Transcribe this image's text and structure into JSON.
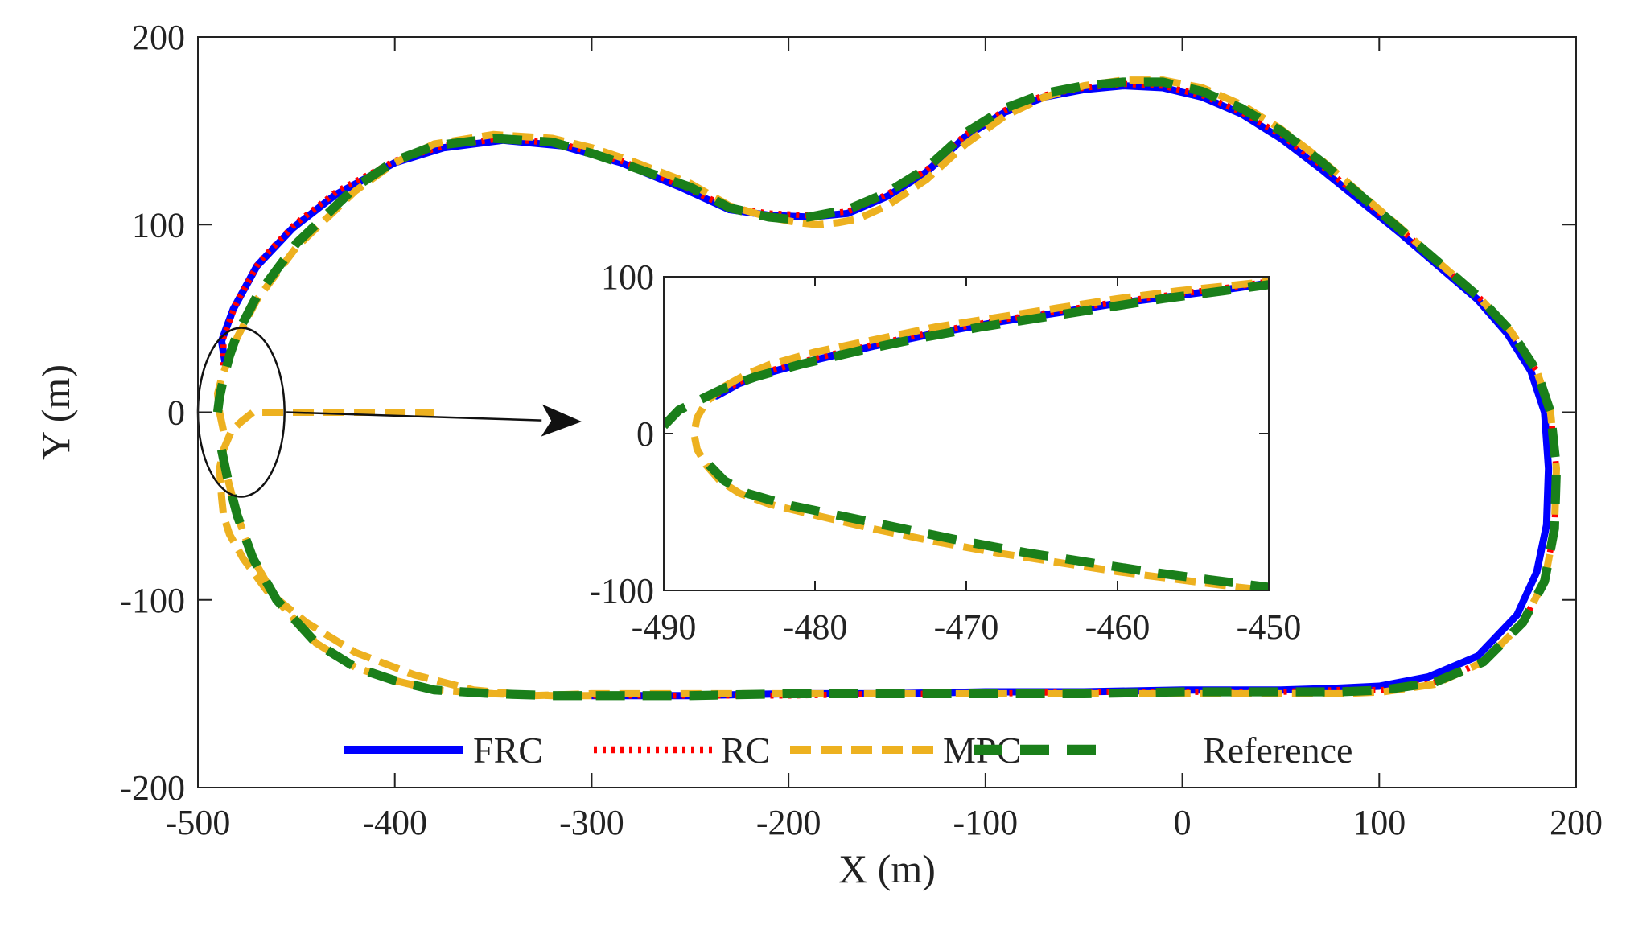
{
  "chart_data": [
    {
      "id": "main",
      "type": "line",
      "title": "",
      "xlabel": "X (m)",
      "ylabel": "Y (m)",
      "xlim": [
        -500,
        200
      ],
      "ylim": [
        -200,
        200
      ],
      "xticks": [
        -500,
        -400,
        -300,
        -200,
        -100,
        0,
        100,
        200
      ],
      "yticks": [
        -200,
        -100,
        0,
        100,
        200
      ],
      "grid": false,
      "legend_position": "bottom",
      "colors": {
        "FRC": "#0000ff",
        "RC": "#ff0000",
        "MPC": "#edb120",
        "Reference": "#1a7f1a"
      },
      "series": [
        {
          "name": "FRC",
          "style": "solid",
          "x": [
            -486,
            -488,
            -482,
            -470,
            -452,
            -430,
            -400,
            -375,
            -345,
            -315,
            -285,
            -255,
            -230,
            -210,
            -190,
            -170,
            -150,
            -130,
            -110,
            -90,
            -70,
            -50,
            -30,
            -10,
            10,
            30,
            50,
            70,
            90,
            110,
            130,
            150,
            165,
            177,
            184,
            186,
            185,
            180,
            170,
            150,
            125,
            100,
            80,
            50,
            0,
            -50,
            -100,
            -150,
            -200,
            -250,
            -300
          ],
          "y": [
            25,
            38,
            55,
            78,
            98,
            116,
            133,
            141,
            145,
            142,
            133,
            120,
            108,
            105,
            104,
            106,
            115,
            128,
            147,
            160,
            168,
            172,
            174,
            173,
            168,
            159,
            146,
            130,
            113,
            96,
            78,
            60,
            42,
            22,
            0,
            -30,
            -60,
            -85,
            -108,
            -130,
            -141,
            -146,
            -147,
            -148,
            -148,
            -149,
            -149,
            -150,
            -150,
            -151,
            -151
          ]
        },
        {
          "name": "RC",
          "style": "dotted",
          "x": [
            -487,
            -487,
            -481,
            -469,
            -451,
            -429,
            -400,
            -375,
            -345,
            -315,
            -285,
            -255,
            -230,
            -210,
            -190,
            -170,
            -150,
            -130,
            -110,
            -90,
            -70,
            -50,
            -30,
            -10,
            10,
            30,
            50,
            70,
            90,
            110,
            130,
            150,
            167,
            180,
            187,
            190,
            189,
            184,
            173,
            153,
            128,
            102,
            80,
            50,
            0,
            -50,
            -100,
            -150,
            -200,
            -250,
            -300
          ],
          "y": [
            25,
            40,
            57,
            80,
            100,
            118,
            134,
            142,
            146,
            143,
            134,
            121,
            109,
            106,
            105,
            107,
            116,
            129,
            148,
            161,
            169,
            173,
            175,
            174,
            169,
            160,
            148,
            132,
            115,
            98,
            80,
            62,
            43,
            22,
            0,
            -30,
            -62,
            -90,
            -112,
            -133,
            -144,
            -148,
            -148,
            -149,
            -149,
            -149,
            -150,
            -150,
            -151,
            -151,
            -151
          ]
        },
        {
          "name": "MPC",
          "style": "dashed",
          "x": [
            -487,
            -489,
            -490,
            -488,
            -485,
            -480,
            -470,
            -450,
            -420,
            -400,
            -380,
            -350,
            -320,
            -300,
            -280,
            -250,
            -230,
            -210,
            -195,
            -185,
            -175,
            -165,
            -150,
            -130,
            -110,
            -90,
            -70,
            -50,
            -30,
            -10,
            10,
            30,
            50,
            70,
            90,
            110,
            130,
            150,
            167,
            180,
            187,
            190,
            189,
            184,
            173,
            153,
            128,
            102,
            80,
            50,
            0,
            -50,
            -100,
            -150,
            -200,
            -250,
            -300,
            -330,
            -360,
            -390,
            -420,
            -445,
            -465,
            -477,
            -484,
            -487,
            -488,
            -489,
            -487,
            -483,
            -478,
            -472,
            -460,
            -440,
            -420,
            -380
          ],
          "y": [
            -10,
            0,
            10,
            18,
            27,
            40,
            60,
            88,
            118,
            133,
            143,
            148,
            146,
            141,
            134,
            122,
            110,
            104,
            101,
            100,
            101,
            103,
            110,
            124,
            143,
            158,
            168,
            174,
            177,
            177,
            173,
            164,
            151,
            135,
            117,
            99,
            80,
            62,
            43,
            22,
            0,
            -30,
            -62,
            -90,
            -112,
            -133,
            -145,
            -149,
            -150,
            -150,
            -150,
            -150,
            -150,
            -150,
            -150,
            -150,
            -150,
            -151,
            -148,
            -140,
            -128,
            -112,
            -95,
            -78,
            -65,
            -55,
            -45,
            -30,
            -20,
            -10,
            -5,
            0,
            0,
            0,
            0,
            0
          ]
        },
        {
          "name": "Reference",
          "style": "longdash",
          "x": [
            -490,
            -489,
            -487,
            -484,
            -480,
            -470,
            -450,
            -420,
            -400,
            -380,
            -350,
            -320,
            -300,
            -280,
            -250,
            -230,
            -210,
            -200,
            -190,
            -170,
            -150,
            -130,
            -110,
            -90,
            -70,
            -50,
            -30,
            -10,
            10,
            30,
            50,
            70,
            90,
            110,
            130,
            150,
            167,
            180,
            187,
            190,
            189,
            184,
            173,
            153,
            128,
            102,
            80,
            50,
            0,
            -50,
            -100,
            -150,
            -200,
            -250,
            -300
          ],
          "y": [
            0,
            8,
            18,
            30,
            42,
            62,
            90,
            120,
            134,
            142,
            146,
            144,
            138,
            131,
            120,
            109,
            104,
            103,
            104,
            108,
            117,
            130,
            149,
            162,
            170,
            174,
            176,
            176,
            171,
            162,
            150,
            134,
            116,
            98,
            80,
            62,
            43,
            22,
            0,
            -30,
            -62,
            -90,
            -112,
            -133,
            -144,
            -148,
            -149,
            -149,
            -149,
            -150,
            -150,
            -150,
            -150,
            -151,
            -151
          ]
        }
      ],
      "lower_branch": {
        "x": [
          -488,
          -485,
          -480,
          -472,
          -460,
          -440,
          -420,
          -400,
          -380,
          -350,
          -320,
          -300
        ],
        "y": [
          -20,
          -35,
          -55,
          -78,
          -100,
          -123,
          -136,
          -143,
          -148,
          -150,
          -151,
          -151
        ]
      },
      "annotations": [
        {
          "type": "ellipse",
          "cx": -478,
          "cy": 0,
          "rx": 22,
          "ry": 45
        },
        {
          "type": "arrow",
          "from": [
            -455,
            0
          ],
          "to": [
            -305,
            -5
          ]
        }
      ]
    },
    {
      "id": "inset",
      "type": "line",
      "title": "",
      "xlabel": "",
      "ylabel": "",
      "xlim": [
        -490,
        -450
      ],
      "ylim": [
        -100,
        100
      ],
      "xticks": [
        -490,
        -480,
        -470,
        -460,
        -450
      ],
      "yticks": [
        -100,
        0,
        100
      ],
      "series": [
        {
          "name": "FRC",
          "x": [
            -486.5,
            -485,
            -483,
            -480,
            -476,
            -472,
            -468,
            -464,
            -460,
            -456,
            -452,
            -450
          ],
          "y": [
            24,
            32,
            39,
            47,
            56,
            64,
            71,
            77,
            83,
            88,
            93,
            96
          ]
        },
        {
          "name": "RC",
          "x": [
            -486.5,
            -485,
            -483,
            -480,
            -476,
            -472,
            -468,
            -464,
            -460,
            -456,
            -452,
            -450
          ],
          "y": [
            25,
            33,
            40,
            48,
            57,
            65,
            72,
            78,
            84,
            89,
            94,
            97
          ]
        },
        {
          "name": "MPC",
          "x": [
            -486,
            -487.2,
            -487.8,
            -488,
            -487.8,
            -487.2,
            -486.3,
            -485,
            -483,
            -480,
            -476,
            -472,
            -468,
            -464,
            -460,
            -456,
            -452,
            -450
          ],
          "y": [
            30,
            20,
            10,
            0,
            -10,
            -20,
            -30,
            -38,
            -45,
            -52,
            -61,
            -69,
            -76,
            -82,
            -88,
            -93,
            -98,
            -100
          ],
          "upper": {
            "x": [
              -486,
              -484.5,
              -483,
              -480,
              -476,
              -472,
              -468,
              -464,
              -460,
              -456,
              -452,
              -450
            ],
            "y": [
              30,
              38,
              44,
              52,
              60,
              68,
              74,
              80,
              86,
              91,
              95,
              97
            ]
          }
        },
        {
          "name": "Reference",
          "x": [
            -487,
            -486,
            -484.5,
            -482,
            -478,
            -474,
            -470,
            -466,
            -462,
            -458,
            -454,
            -450
          ],
          "y": [
            -20,
            -30,
            -38,
            -45,
            -53,
            -61,
            -69,
            -76,
            -82,
            -88,
            -93,
            -98
          ],
          "upper": {
            "x": [
              -490,
              -489,
              -487.5,
              -486,
              -484,
              -481,
              -477,
              -473,
              -469,
              -465,
              -461,
              -457,
              -453,
              -450
            ],
            "y": [
              5,
              15,
              22,
              29,
              36,
              44,
              53,
              61,
              68,
              74,
              80,
              86,
              91,
              95
            ]
          }
        }
      ]
    }
  ],
  "legend": [
    {
      "label": "FRC",
      "style": "solid"
    },
    {
      "label": "RC",
      "style": "dotted"
    },
    {
      "label": "MPC",
      "style": "dashed"
    },
    {
      "label": "Reference",
      "style": "longdash"
    }
  ]
}
